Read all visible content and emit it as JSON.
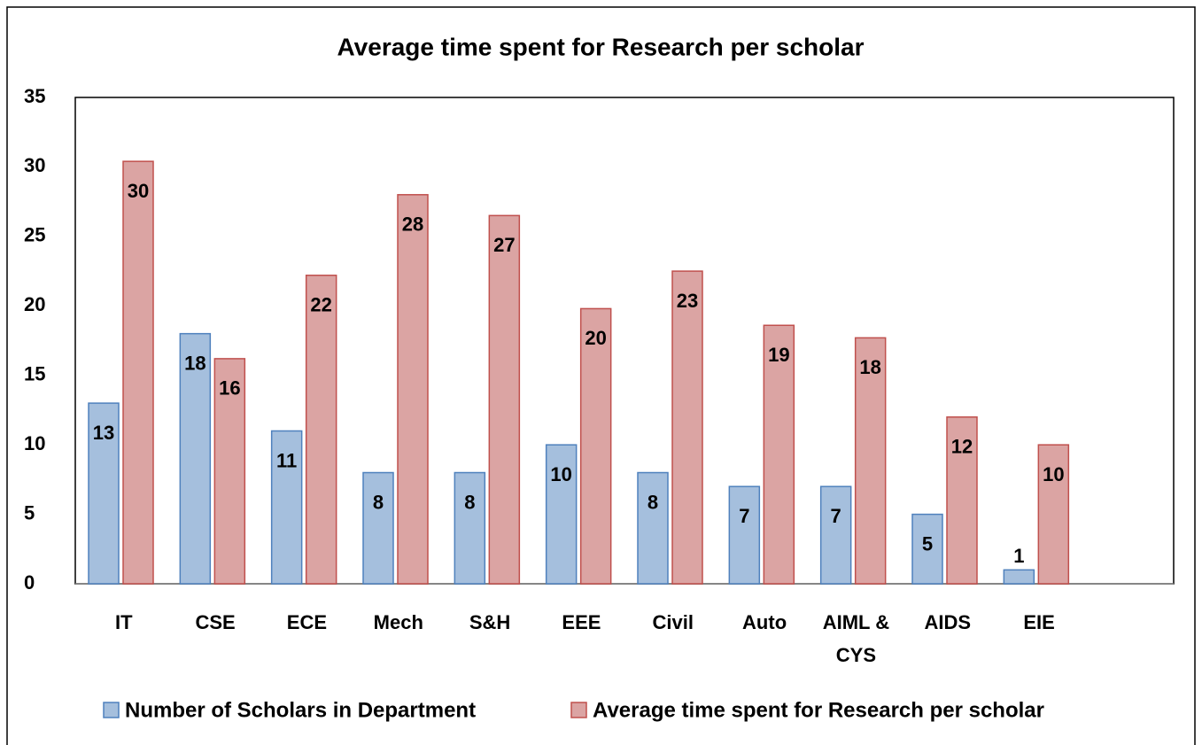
{
  "chart_data": {
    "type": "bar",
    "title": "Average time spent for Research per scholar",
    "categories": [
      "IT",
      "CSE",
      "ECE",
      "Mech",
      "S&H",
      "EEE",
      "Civil",
      "Auto",
      "AIML & CYS",
      "AIDS",
      "EIE",
      null
    ],
    "series": [
      {
        "name": "Number of Scholars in Department",
        "color": "#a5bfdd",
        "values": [
          13,
          18,
          11,
          8,
          8,
          10,
          8,
          7,
          7,
          5,
          1,
          null
        ]
      },
      {
        "name": "Average time spent for Research per scholar",
        "color": "#dba4a3",
        "values": [
          30.4,
          16.2,
          22.2,
          28,
          26.5,
          19.8,
          22.5,
          18.6,
          17.7,
          12,
          10,
          null
        ],
        "value_labels": [
          "30",
          "16",
          "22",
          "28",
          "27",
          "20",
          "23",
          "19",
          "18",
          "12",
          "10",
          null
        ]
      }
    ],
    "ylim": [
      0,
      35
    ],
    "yticks": [
      0,
      5,
      10,
      15,
      20,
      25,
      30,
      35
    ],
    "grid": false,
    "legend": "bottom"
  }
}
